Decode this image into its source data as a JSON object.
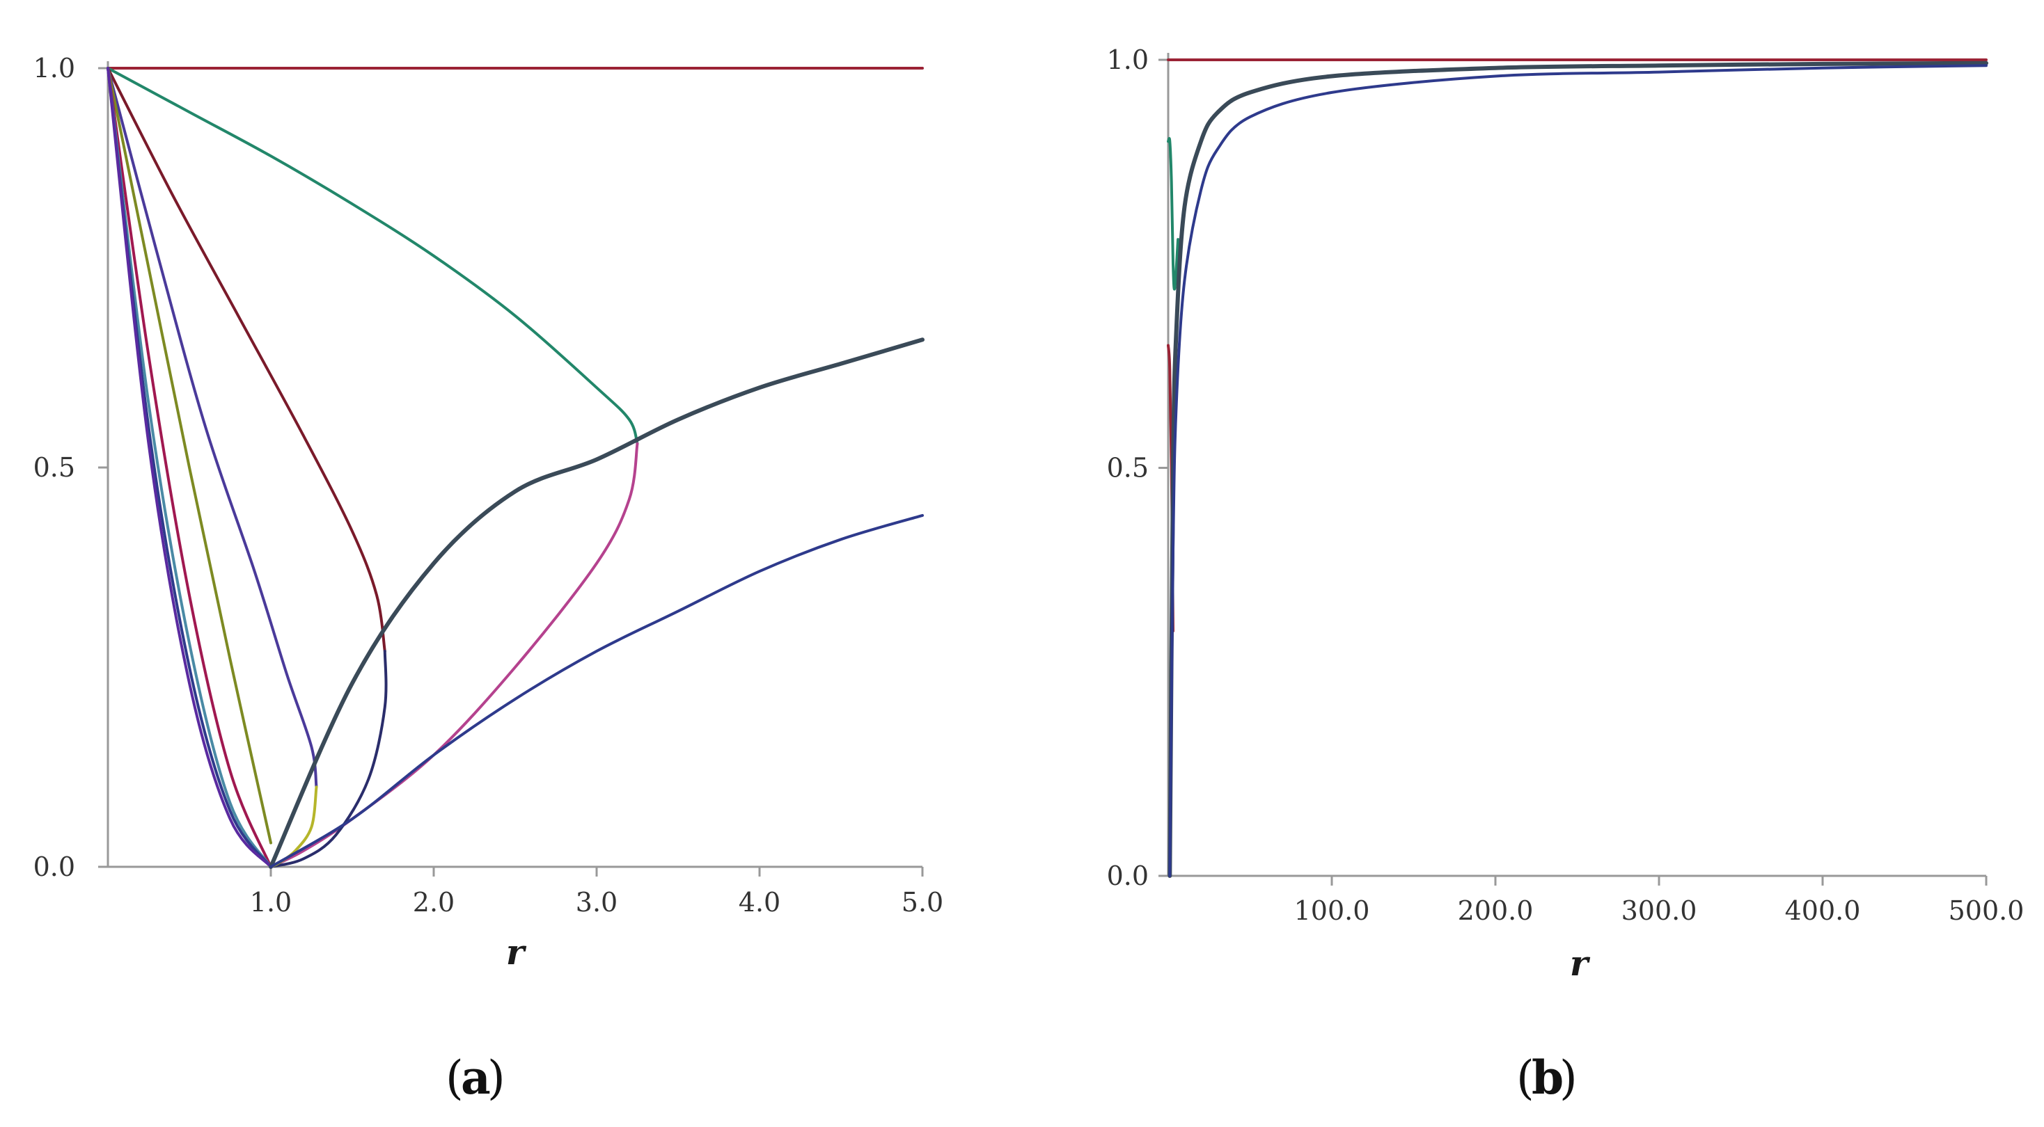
{
  "chart_data": [
    {
      "type": "line",
      "panel_label": "a",
      "xlabel": "r",
      "ylabel": "",
      "xlim": [
        0,
        5
      ],
      "ylim": [
        0,
        1
      ],
      "x_ticks": [
        "1.0",
        "2.0",
        "3.0",
        "4.0",
        "5.0"
      ],
      "y_ticks": [
        "0.0",
        "0.5",
        "1.0"
      ],
      "grid": false,
      "series": [
        {
          "color": "#9b2335",
          "x": [
            0,
            5
          ],
          "y": [
            1,
            1
          ]
        },
        {
          "color": "#22876a",
          "x": [
            0,
            0.5,
            1.0,
            1.5,
            2.0,
            2.5,
            3.0,
            3.2,
            3.25
          ],
          "y": [
            1,
            0.945,
            0.89,
            0.83,
            0.765,
            0.69,
            0.6,
            0.56,
            0.53
          ]
        },
        {
          "color": "#b5428e",
          "x": [
            3.25,
            3.2,
            3.0,
            2.5,
            2.0,
            1.5,
            1.2,
            1.0
          ],
          "y": [
            0.53,
            0.46,
            0.38,
            0.25,
            0.14,
            0.06,
            0.02,
            0
          ]
        },
        {
          "color": "#7a1a2a",
          "x": [
            0,
            0.4,
            0.8,
            1.2,
            1.5,
            1.65,
            1.7
          ],
          "y": [
            1,
            0.84,
            0.69,
            0.54,
            0.42,
            0.34,
            0.27
          ]
        },
        {
          "color": "#2a2d6b",
          "x": [
            1.7,
            1.7,
            1.6,
            1.4,
            1.2,
            1.0
          ],
          "y": [
            0.27,
            0.2,
            0.11,
            0.04,
            0.01,
            0
          ]
        },
        {
          "color": "#4a3a9a",
          "x": [
            0,
            0.3,
            0.6,
            0.9,
            1.1,
            1.25,
            1.28
          ],
          "y": [
            1,
            0.77,
            0.55,
            0.37,
            0.24,
            0.15,
            0.1
          ]
        },
        {
          "color": "#b5b52a",
          "x": [
            1.28,
            1.25,
            1.15,
            1.05,
            1.0
          ],
          "y": [
            0.1,
            0.05,
            0.02,
            0.005,
            0
          ]
        },
        {
          "color": "#7d8a22",
          "x": [
            0,
            0.25,
            0.5,
            0.75,
            1.0
          ],
          "y": [
            1,
            0.75,
            0.5,
            0.26,
            0.03
          ]
        },
        {
          "color": "#a01850",
          "x": [
            0,
            0.25,
            0.5,
            0.75,
            1.0
          ],
          "y": [
            1,
            0.64,
            0.34,
            0.12,
            0
          ]
        },
        {
          "color": "#4a8aa5",
          "x": [
            0,
            0.25,
            0.5,
            0.75,
            1.0
          ],
          "y": [
            1,
            0.58,
            0.28,
            0.08,
            0
          ]
        },
        {
          "color": "#2f3a8c",
          "x": [
            0,
            0.25,
            0.5,
            0.75,
            1.0
          ],
          "y": [
            1,
            0.55,
            0.25,
            0.07,
            0
          ]
        },
        {
          "color": "#5a2aa0",
          "x": [
            0,
            0.25,
            0.5,
            0.75,
            1.0
          ],
          "y": [
            1,
            0.53,
            0.23,
            0.06,
            0
          ]
        },
        {
          "color": "#3a4a58",
          "x": [
            1.0,
            1.5,
            2.0,
            2.5,
            3.0,
            3.5,
            4.0,
            4.5,
            5.0
          ],
          "y": [
            0,
            0.23,
            0.38,
            0.47,
            0.51,
            0.56,
            0.6,
            0.63,
            0.66
          ]
        },
        {
          "color": "#2e3a8c",
          "x": [
            1.0,
            1.5,
            2.0,
            2.5,
            3.0,
            3.5,
            4.0,
            4.5,
            5.0
          ],
          "y": [
            0,
            0.06,
            0.14,
            0.21,
            0.27,
            0.32,
            0.37,
            0.41,
            0.44
          ]
        }
      ]
    },
    {
      "type": "line",
      "panel_label": "b",
      "xlabel": "r",
      "ylabel": "",
      "xlim": [
        0,
        500
      ],
      "ylim": [
        0,
        1
      ],
      "x_ticks": [
        "100.0",
        "200.0",
        "300.0",
        "400.0",
        "500.0"
      ],
      "y_ticks": [
        "0.0",
        "0.5",
        "1.0"
      ],
      "grid": false,
      "series": [
        {
          "color": "#9b2335",
          "x": [
            0,
            500
          ],
          "y": [
            1,
            1
          ]
        },
        {
          "color": "#22876a",
          "x": [
            0,
            1,
            2,
            3,
            4,
            6
          ],
          "y": [
            0.9,
            0.9,
            0.85,
            0.75,
            0.72,
            0.78
          ]
        },
        {
          "color": "#9b2335",
          "x": [
            0,
            1,
            2,
            3
          ],
          "y": [
            0.65,
            0.62,
            0.5,
            0.3
          ]
        },
        {
          "color": "#3a4a58",
          "x": [
            1,
            3,
            5,
            10,
            20,
            30,
            50,
            100,
            200,
            300,
            400,
            500
          ],
          "y": [
            0,
            0.5,
            0.67,
            0.82,
            0.9,
            0.935,
            0.96,
            0.98,
            0.99,
            0.993,
            0.995,
            0.996
          ]
        },
        {
          "color": "#2e3a8c",
          "x": [
            1,
            3,
            5,
            10,
            20,
            30,
            50,
            100,
            200,
            300,
            400,
            500
          ],
          "y": [
            0,
            0.4,
            0.58,
            0.73,
            0.84,
            0.89,
            0.93,
            0.96,
            0.98,
            0.985,
            0.99,
            0.993
          ]
        }
      ]
    }
  ]
}
